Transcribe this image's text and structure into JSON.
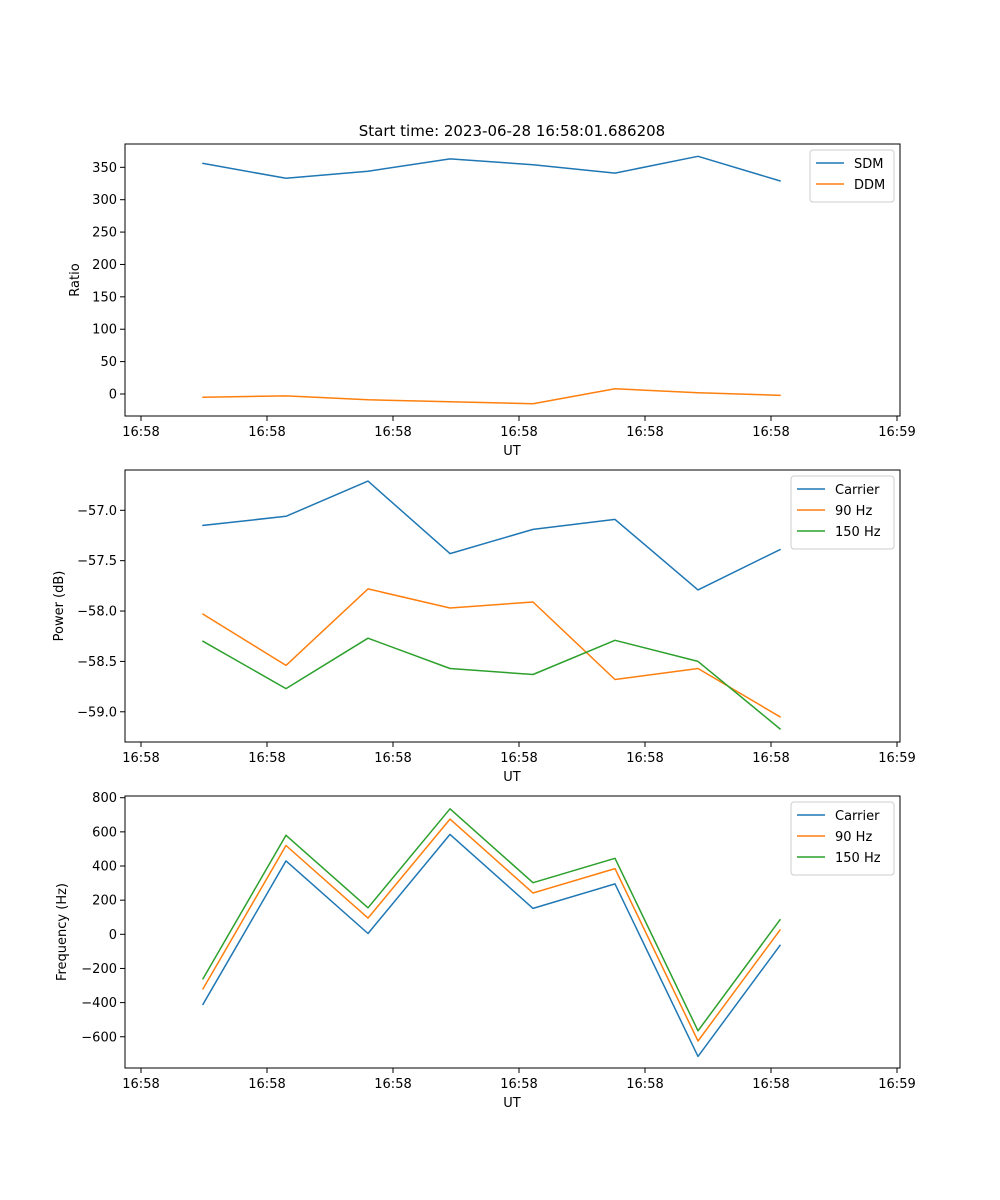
{
  "figure_title": "Start time: 2023-06-28 16:58:01.686208",
  "colors": {
    "blue": "#1f77b4",
    "orange": "#ff7f0e",
    "green": "#2ca02c"
  },
  "chart_data": [
    {
      "type": "line",
      "xlabel": "UT",
      "ylabel": "Ratio",
      "x_tick_labels": [
        "16:58",
        "16:58",
        "16:58",
        "16:58",
        "16:58",
        "16:58",
        "16:58"
      ],
      "x_tick_edge_label": "16:59",
      "ylim": [
        -34,
        386
      ],
      "yticks": [
        0,
        50,
        100,
        150,
        200,
        250,
        300,
        350
      ],
      "ytick_labels": [
        "0",
        "50",
        "100",
        "150",
        "200",
        "250",
        "300",
        "350"
      ],
      "legend_position": "upper right",
      "series": [
        {
          "name": "SDM",
          "color": "#1f77b4",
          "values": [
            356,
            333,
            344,
            363,
            354,
            341,
            367,
            329
          ]
        },
        {
          "name": "DDM",
          "color": "#ff7f0e",
          "values": [
            -5,
            -3,
            -9,
            -12,
            -15,
            8,
            2,
            -2
          ]
        }
      ]
    },
    {
      "type": "line",
      "xlabel": "UT",
      "ylabel": "Power (dB)",
      "x_tick_labels": [
        "16:58",
        "16:58",
        "16:58",
        "16:58",
        "16:58",
        "16:58",
        "16:58"
      ],
      "x_tick_edge_label": "16:59",
      "ylim": [
        -59.3,
        -56.6
      ],
      "yticks": [
        -59.0,
        -58.5,
        -58.0,
        -57.5,
        -57.0
      ],
      "ytick_labels": [
        "−59.0",
        "−58.5",
        "−58.0",
        "−57.5",
        "−57.0"
      ],
      "legend_position": "upper right",
      "series": [
        {
          "name": "Carrier",
          "color": "#1f77b4",
          "values": [
            -57.15,
            -57.06,
            -56.71,
            -57.43,
            -57.19,
            -57.09,
            -57.79,
            -57.39
          ]
        },
        {
          "name": "90 Hz",
          "color": "#ff7f0e",
          "values": [
            -58.03,
            -58.54,
            -57.78,
            -57.97,
            -57.91,
            -58.68,
            -58.57,
            -59.05
          ]
        },
        {
          "name": "150 Hz",
          "color": "#2ca02c",
          "values": [
            -58.3,
            -58.77,
            -58.27,
            -58.57,
            -58.63,
            -58.29,
            -58.5,
            -59.17
          ]
        }
      ]
    },
    {
      "type": "line",
      "xlabel": "UT",
      "ylabel": "Frequency (Hz)",
      "x_tick_labels": [
        "16:58",
        "16:58",
        "16:58",
        "16:58",
        "16:58",
        "16:58",
        "16:58"
      ],
      "x_tick_edge_label": "16:59",
      "ylim": [
        -783,
        810
      ],
      "yticks": [
        -600,
        -400,
        -200,
        0,
        200,
        400,
        600,
        800
      ],
      "ytick_labels": [
        "−600",
        "−400",
        "−200",
        "0",
        "200",
        "400",
        "600",
        "800"
      ],
      "legend_position": "upper right",
      "series": [
        {
          "name": "Carrier",
          "color": "#1f77b4",
          "values": [
            -410,
            430,
            5,
            585,
            152,
            295,
            -715,
            -65
          ]
        },
        {
          "name": "90 Hz",
          "color": "#ff7f0e",
          "values": [
            -320,
            520,
            95,
            675,
            242,
            385,
            -625,
            25
          ]
        },
        {
          "name": "150 Hz",
          "color": "#2ca02c",
          "values": [
            -260,
            580,
            155,
            735,
            302,
            445,
            -565,
            85
          ]
        }
      ]
    }
  ]
}
